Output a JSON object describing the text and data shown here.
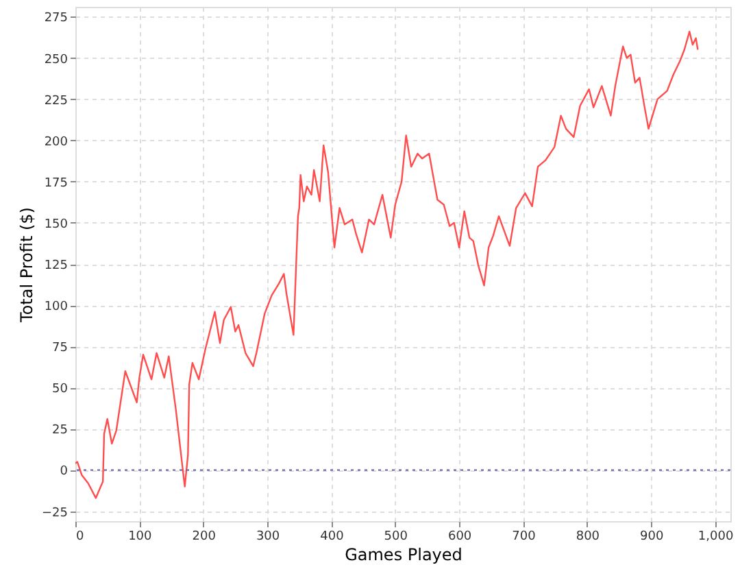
{
  "chart_data": {
    "type": "line",
    "xlabel": "Games Played",
    "ylabel": "Total Profit ($)",
    "x": [
      0,
      3,
      10,
      20,
      32,
      43,
      45,
      50,
      57,
      64,
      78,
      96,
      100,
      106,
      119,
      127,
      139,
      146,
      157,
      171,
      176,
      178,
      183,
      193,
      203,
      218,
      226,
      232,
      243,
      250,
      255,
      266,
      278,
      283,
      296,
      307,
      318,
      326,
      330,
      341,
      348,
      350,
      352,
      357,
      362,
      369,
      373,
      382,
      388,
      395,
      405,
      413,
      421,
      433,
      439,
      448,
      459,
      467,
      480,
      485,
      493,
      500,
      510,
      517,
      525,
      535,
      542,
      553,
      566,
      576,
      585,
      592,
      600,
      608,
      616,
      622,
      630,
      639,
      646,
      653,
      662,
      679,
      689,
      703,
      714,
      723,
      735,
      749,
      759,
      767,
      779,
      789,
      803,
      810,
      823,
      837,
      844,
      850,
      856,
      862,
      868,
      875,
      882,
      889,
      896,
      910,
      925,
      935,
      945,
      952,
      960,
      965,
      970,
      973
    ],
    "series": [
      {
        "color": "#ff4d4d",
        "values": [
          4,
          5,
          -3,
          -8,
          -17,
          -7,
          22,
          31,
          16,
          24,
          60,
          41,
          56,
          70,
          55,
          71,
          56,
          69,
          37,
          -10,
          9,
          52,
          65,
          55,
          73,
          96,
          77,
          91,
          99,
          84,
          88,
          71,
          63,
          71,
          95,
          106,
          113,
          119,
          107,
          82,
          154,
          159,
          179,
          163,
          172,
          167,
          182,
          163,
          197,
          181,
          135,
          159,
          149,
          152,
          143,
          132,
          152,
          149,
          167,
          157,
          141,
          161,
          175,
          203,
          184,
          192,
          189,
          192,
          164,
          161,
          148,
          150,
          135,
          157,
          141,
          139,
          124,
          112,
          135,
          142,
          154,
          136,
          159,
          168,
          160,
          184,
          188,
          196,
          215,
          207,
          202,
          221,
          231,
          220,
          233,
          215,
          233,
          245,
          257,
          250,
          252,
          235,
          238,
          222,
          207,
          225,
          230,
          240,
          248,
          255,
          266,
          258,
          262,
          255
        ]
      }
    ],
    "xlim": [
      0,
      1024
    ],
    "ylim": [
      -31,
      281
    ],
    "xticks": [
      0,
      100,
      200,
      300,
      400,
      500,
      600,
      700,
      800,
      900,
      {
        "value": 1000,
        "label": "1,000"
      }
    ],
    "yticks": [
      -25,
      0,
      25,
      50,
      75,
      100,
      125,
      150,
      175,
      200,
      225,
      250,
      275
    ],
    "grid": true,
    "marker": "none",
    "line_style": "solid",
    "ref_lines": [
      {
        "axis": "y",
        "value": 0,
        "color": "#5a5aa8",
        "line_style": "dotted"
      }
    ]
  }
}
